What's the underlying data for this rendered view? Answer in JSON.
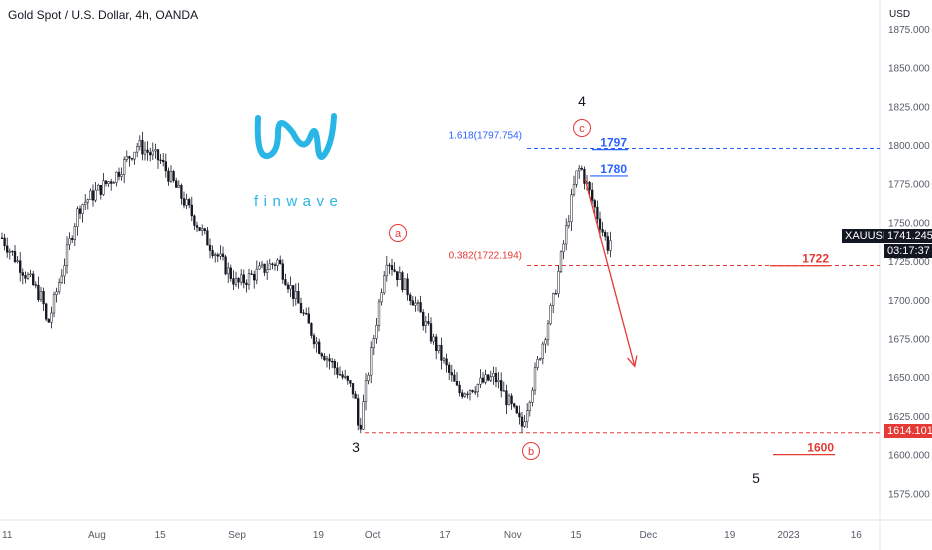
{
  "header": {
    "title": "Gold Spot / U.S. Dollar, 4h, OANDA",
    "currency": "USD"
  },
  "brand": {
    "name": "finwave",
    "color": "#29b6e6",
    "icon": "finwave-wave-logo"
  },
  "colors": {
    "candle": "#131722",
    "red": "#e53935",
    "blue": "#2962ff",
    "axis_text": "#555b66",
    "tag_dark": "#131722"
  },
  "tags": {
    "symbol": "XAUUSD",
    "last_price": "1741.245",
    "countdown": "03:17:37",
    "level_low": "1614.101"
  },
  "chart_data": {
    "type": "candlestick",
    "title": "Gold Spot / U.S. Dollar, 4h, OANDA",
    "ylabel": "USD",
    "ylim": [
      1560,
      1880
    ],
    "y_ticks": [
      "1575.000",
      "1600.000",
      "1625.000",
      "1650.000",
      "1675.000",
      "1700.000",
      "1725.000",
      "1750.000",
      "1775.000",
      "1800.000",
      "1825.000",
      "1850.000",
      "1875.000"
    ],
    "x_ticks": [
      "11",
      "Aug",
      "15",
      "Sep",
      "19",
      "Oct",
      "17",
      "Nov",
      "15",
      "Dec",
      "19",
      "2023",
      "16"
    ],
    "price_path": [
      {
        "x": "Jul 11",
        "y": 1740
      },
      {
        "x": "Jul 20",
        "y": 1700
      },
      {
        "x": "Jul 21",
        "y": 1682
      },
      {
        "x": "Jul 28",
        "y": 1760
      },
      {
        "x": "Aug 5",
        "y": 1780
      },
      {
        "x": "Aug 10",
        "y": 1800
      },
      {
        "x": "Aug 15",
        "y": 1790
      },
      {
        "x": "Aug 25",
        "y": 1740
      },
      {
        "x": "Sep 1",
        "y": 1710
      },
      {
        "x": "Sep 10",
        "y": 1725
      },
      {
        "x": "Sep 19",
        "y": 1670
      },
      {
        "x": "Sep 27",
        "y": 1640
      },
      {
        "x": "Sep 28",
        "y": 1614
      },
      {
        "x": "Oct 4",
        "y": 1728
      },
      {
        "x": "Oct 10",
        "y": 1700
      },
      {
        "x": "Oct 20",
        "y": 1640
      },
      {
        "x": "Oct 28",
        "y": 1650
      },
      {
        "x": "Nov 3",
        "y": 1618
      },
      {
        "x": "Nov 10",
        "y": 1700
      },
      {
        "x": "Nov 15",
        "y": 1780
      },
      {
        "x": "Nov 16",
        "y": 1786
      },
      {
        "x": "Nov 22",
        "y": 1735
      },
      {
        "x": "Nov 23",
        "y": 1741
      }
    ],
    "fib_levels": [
      {
        "label": "1.618(1797.754)",
        "value": 1797.754,
        "color": "#2962ff"
      },
      {
        "label": "0.382(1722.194)",
        "value": 1722.194,
        "color": "#e53935"
      }
    ],
    "horizontal_lines": [
      {
        "value": 1614.101,
        "color": "#e53935"
      }
    ],
    "targets": [
      {
        "label": "1797",
        "value": 1797,
        "color": "#2962ff"
      },
      {
        "label": "1780",
        "value": 1780,
        "color": "#2962ff"
      },
      {
        "label": "1722",
        "value": 1722,
        "color": "#e53935"
      },
      {
        "label": "1600",
        "value": 1600,
        "color": "#e53935"
      }
    ],
    "wave_labels": [
      {
        "label": "3",
        "x": "Sep 28",
        "y": 1614,
        "style": "plain"
      },
      {
        "label": "4",
        "x": "Nov 15",
        "y": 1786,
        "style": "plain"
      },
      {
        "label": "5",
        "x": "Dec 28",
        "y": 1600,
        "style": "plain"
      },
      {
        "label": "a",
        "x": "Oct 4",
        "y": 1728,
        "style": "circled"
      },
      {
        "label": "b",
        "x": "Nov 3",
        "y": 1618,
        "style": "circled"
      },
      {
        "label": "c",
        "x": "Nov 15",
        "y": 1786,
        "style": "circled"
      }
    ],
    "arrow": {
      "from": {
        "x": "Nov 17",
        "y": 1778
      },
      "to": {
        "x": "Nov 28",
        "y": 1657
      },
      "color": "#e53935"
    }
  }
}
